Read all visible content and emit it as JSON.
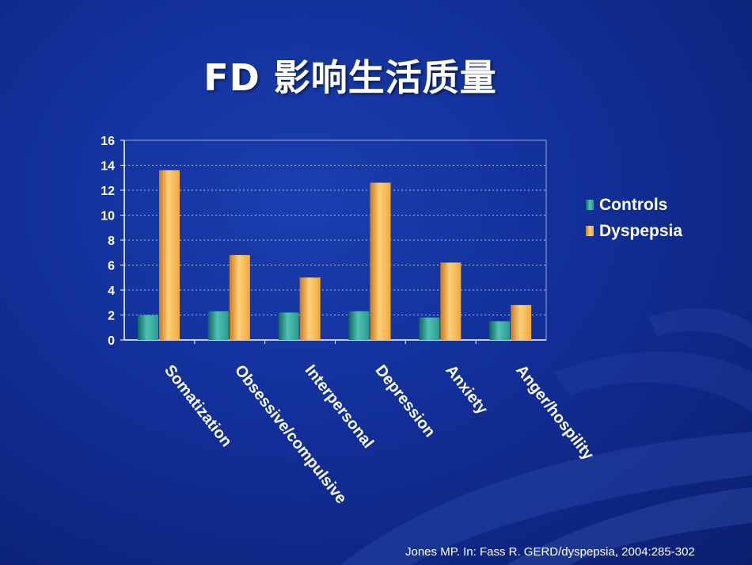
{
  "title": "FD 影响生活质量",
  "source": "Jones MP. In: Fass R. GERD/dyspepsia, 2004:285-302",
  "colors": {
    "controls": "#2a9a8c",
    "dyspepsia": "#f2a73a",
    "grid": "#c8d0e8",
    "plot_border": "#9aa6cc"
  },
  "chart_data": {
    "type": "bar",
    "categories": [
      "Somatization",
      "Obsessive/compulsive",
      "Interpersonal",
      "Depression",
      "Anxiety",
      "Anger/hospility"
    ],
    "series": [
      {
        "name": "Controls",
        "values": [
          2.0,
          2.3,
          2.2,
          2.3,
          1.8,
          1.5
        ]
      },
      {
        "name": "Dyspepsia",
        "values": [
          13.6,
          6.8,
          5.0,
          12.6,
          6.2,
          2.8
        ]
      }
    ],
    "ylim": [
      0,
      16
    ],
    "yticks": [
      "0",
      "2",
      "4",
      "6",
      "8",
      "10",
      "12",
      "14",
      "16"
    ],
    "grid": true,
    "legend": "right"
  }
}
